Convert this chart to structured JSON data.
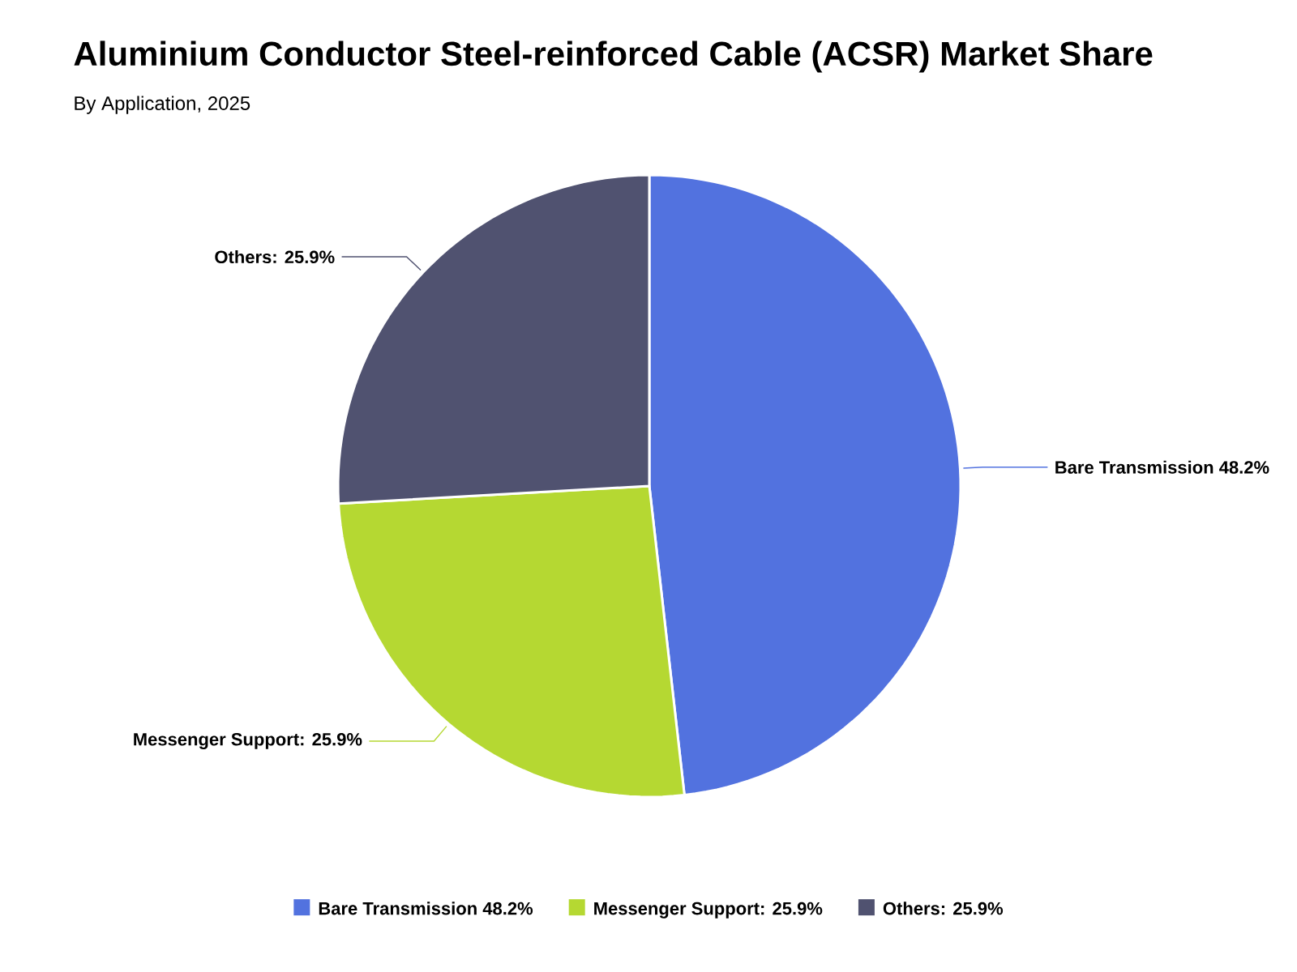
{
  "chart_data": {
    "type": "pie",
    "title": "Aluminium Conductor Steel-reinforced Cable (ACSR) Market Share",
    "subtitle": "By Application, 2025",
    "categories": [
      "Bare Transmission  48.2%",
      "Messenger Support: 25.9%",
      "Others: 25.9%"
    ],
    "values": [
      48.2,
      25.9,
      25.9
    ],
    "colors": [
      "#5272df",
      "#b5d832",
      "#505270"
    ],
    "legend": "bottom"
  }
}
